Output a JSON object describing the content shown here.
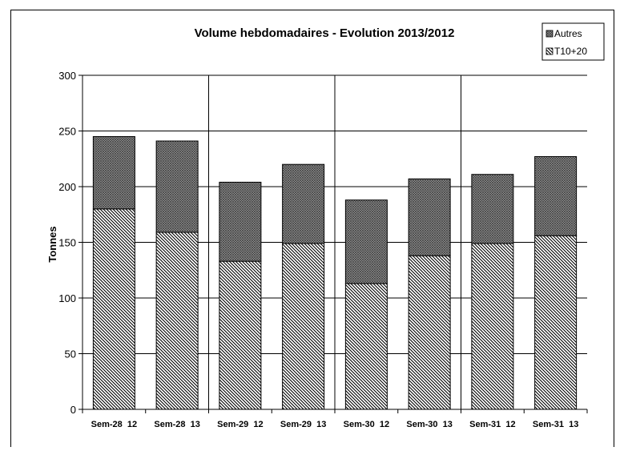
{
  "chart_data": {
    "type": "bar",
    "stacked": true,
    "title": "Volume hebdomadaires  - Evolution 2013/2012",
    "xlabel": "",
    "ylabel": "Tonnes",
    "ylim": [
      0,
      300
    ],
    "yticks": [
      0,
      50,
      100,
      150,
      200,
      250,
      300
    ],
    "grid": true,
    "legend_position": "top-right",
    "categories": [
      "Sem-28  12",
      "Sem-28  13",
      "Sem-29  12",
      "Sem-29  13",
      "Sem-30  12",
      "Sem-30  13",
      "Sem-31  12",
      "Sem-31  13"
    ],
    "series": [
      {
        "name": "T10+20",
        "values": [
          180,
          159,
          133,
          149,
          113,
          138,
          149,
          156
        ],
        "pattern": "diagonal-hatch"
      },
      {
        "name": "Autres",
        "values": [
          65,
          82,
          71,
          71,
          75,
          69,
          62,
          71
        ],
        "pattern": "crosshatch"
      }
    ],
    "legend_order": [
      "Autres",
      "T10+20"
    ]
  }
}
